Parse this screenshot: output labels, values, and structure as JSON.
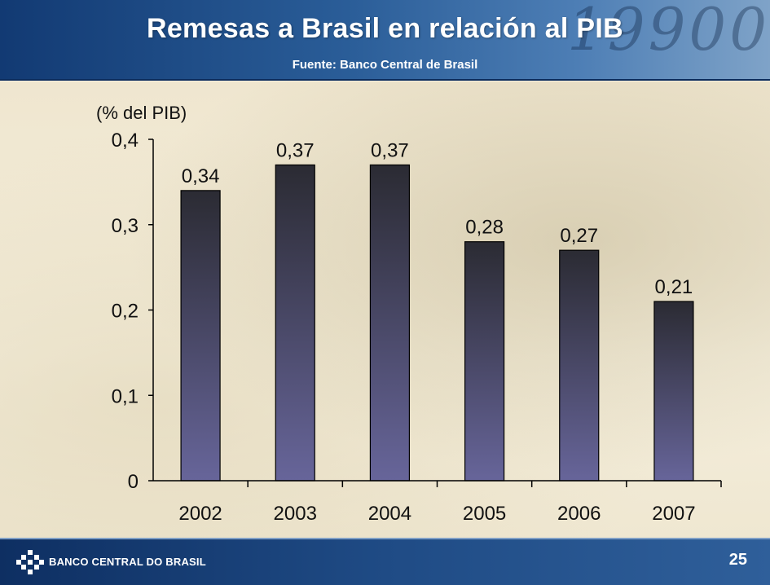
{
  "header": {
    "title": "Remesas a Brasil en relación al PIB",
    "subtitle": "Fuente: Banco Central de Brasil"
  },
  "footer": {
    "logo_text": "BANCO CENTRAL DO BRASIL",
    "page_number": "25"
  },
  "colors": {
    "bar_top": "#2b2b33",
    "bar_bottom": "#67659a",
    "header_blue": "#1f4b85"
  },
  "chart_data": {
    "type": "bar",
    "title": "Remesas a Brasil en relación al PIB",
    "ylabel": "(% del PIB)",
    "categories": [
      "2002",
      "2003",
      "2004",
      "2005",
      "2006",
      "2007"
    ],
    "values": [
      0.34,
      0.37,
      0.37,
      0.28,
      0.27,
      0.21
    ],
    "value_labels": [
      "0,34",
      "0,37",
      "0,37",
      "0,28",
      "0,27",
      "0,21"
    ],
    "yticks": [
      0,
      0.1,
      0.2,
      0.3,
      0.4
    ],
    "ytick_labels": [
      "0",
      "0,1",
      "0,2",
      "0,3",
      "0,4"
    ],
    "ylim": [
      0,
      0.4
    ],
    "grid": false,
    "legend": "none"
  }
}
